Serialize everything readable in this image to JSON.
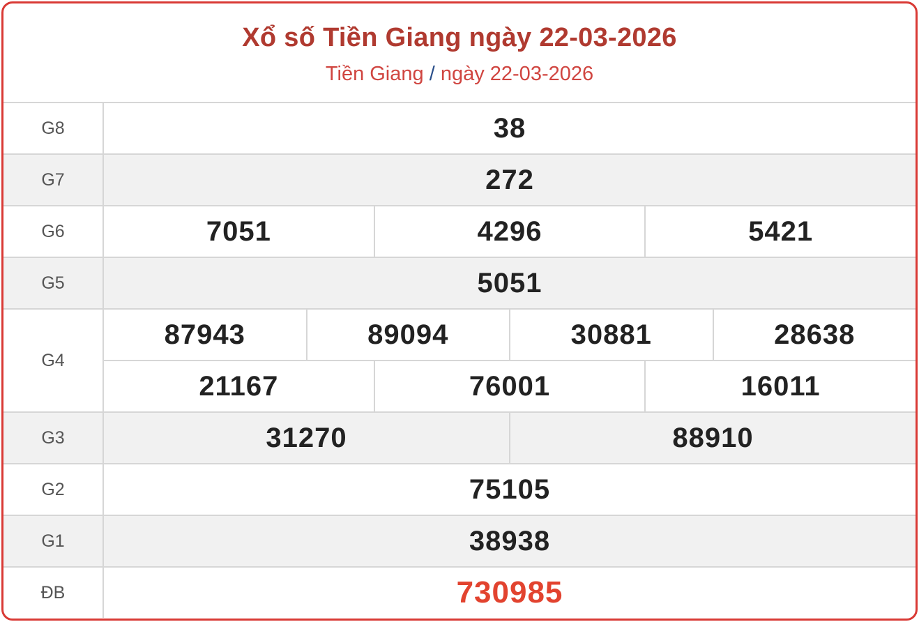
{
  "header": {
    "title": "Xổ số Tiền Giang ngày 22-03-2026",
    "breadcrumb": {
      "province": "Tiền Giang",
      "separator": "/",
      "date": "ngày 22-03-2026"
    }
  },
  "prizes": [
    {
      "label": "G8",
      "lines": [
        [
          "38"
        ]
      ]
    },
    {
      "label": "G7",
      "lines": [
        [
          "272"
        ]
      ]
    },
    {
      "label": "G6",
      "lines": [
        [
          "7051",
          "4296",
          "5421"
        ]
      ]
    },
    {
      "label": "G5",
      "lines": [
        [
          "5051"
        ]
      ]
    },
    {
      "label": "G4",
      "lines": [
        [
          "87943",
          "89094",
          "30881",
          "28638"
        ],
        [
          "21167",
          "76001",
          "16011"
        ]
      ]
    },
    {
      "label": "G3",
      "lines": [
        [
          "31270",
          "88910"
        ]
      ]
    },
    {
      "label": "G2",
      "lines": [
        [
          "75105"
        ]
      ]
    },
    {
      "label": "G1",
      "lines": [
        [
          "38938"
        ]
      ]
    },
    {
      "label": "ĐB",
      "lines": [
        [
          "730985"
        ]
      ]
    }
  ],
  "colors": {
    "border": "#d93a35",
    "title": "#b03a30",
    "special": "#e2432f"
  }
}
